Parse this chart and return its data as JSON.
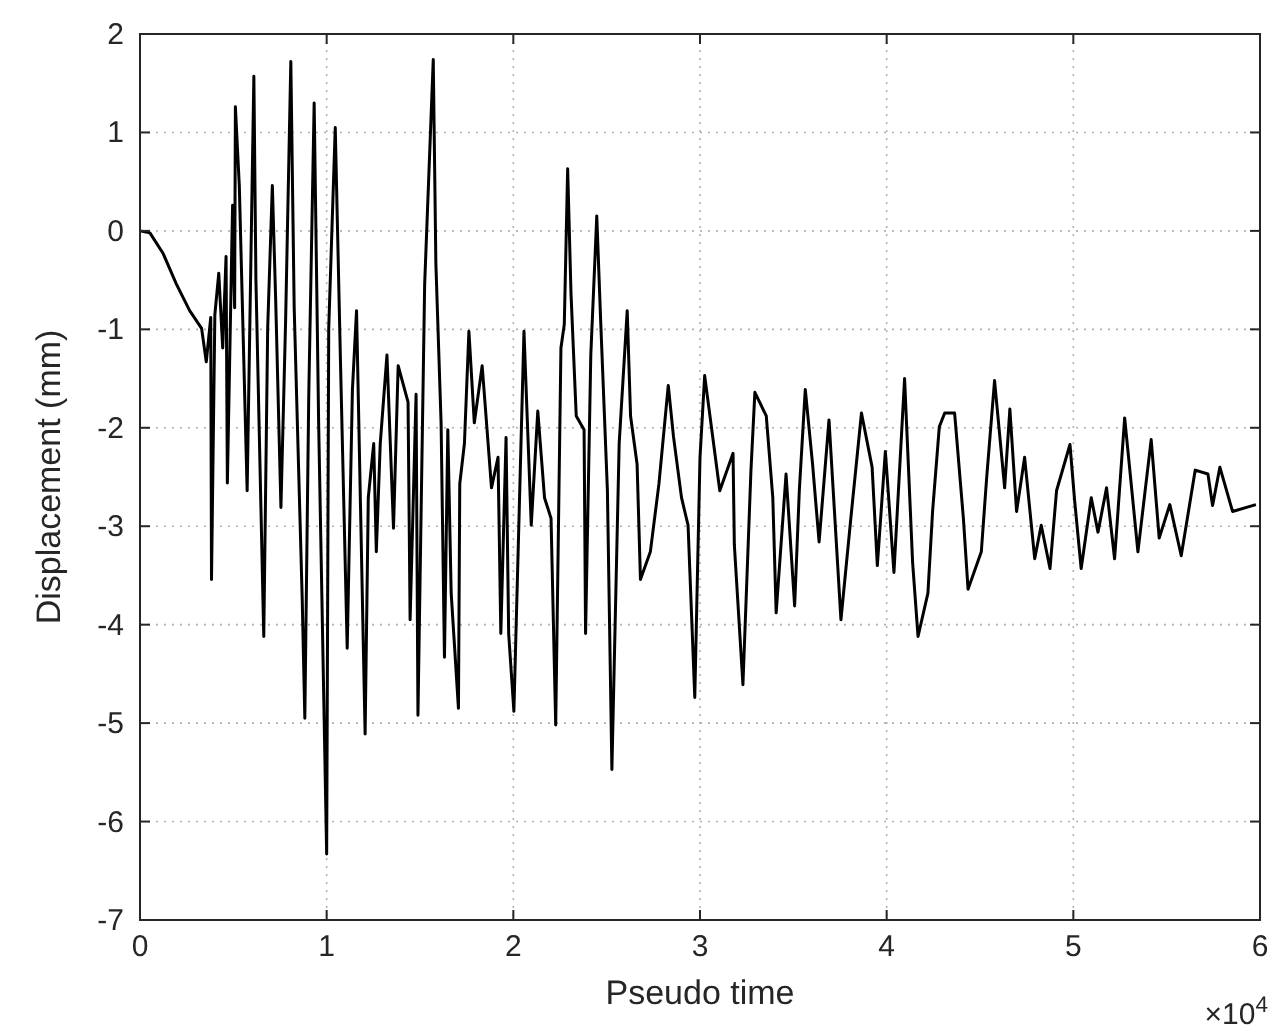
{
  "chart_data": {
    "type": "line",
    "xlabel": "Pseudo time",
    "ylabel": "Displacement (mm)",
    "annotations": [
      "×10$^{4}$"
    ],
    "xlim": [
      0,
      6
    ],
    "ylim": [
      -7,
      2
    ],
    "xticks": [
      0,
      1,
      2,
      3,
      4,
      5,
      6
    ],
    "yticks": [
      -7,
      -6,
      -5,
      -4,
      -3,
      -2,
      -1,
      0,
      1,
      2
    ],
    "grid": true,
    "marker": "none",
    "line_style": "solid",
    "series": [
      {
        "color": "#000000",
        "x": [
          0,
          0.053,
          0.124,
          0.195,
          0.266,
          0.33,
          0.355,
          0.379,
          0.383,
          0.401,
          0.422,
          0.443,
          0.461,
          0.468,
          0.496,
          0.507,
          0.511,
          0.532,
          0.574,
          0.61,
          0.621,
          0.663,
          0.684,
          0.709,
          0.727,
          0.755,
          0.78,
          0.808,
          0.826,
          0.869,
          0.883,
          0.904,
          0.933,
          0.957,
          1.0,
          1.011,
          1.046,
          1.074,
          1.11,
          1.138,
          1.16,
          1.17,
          1.206,
          1.223,
          1.252,
          1.266,
          1.287,
          1.323,
          1.358,
          1.383,
          1.436,
          1.447,
          1.479,
          1.489,
          1.525,
          1.571,
          1.585,
          1.613,
          1.631,
          1.649,
          1.667,
          1.706,
          1.713,
          1.738,
          1.762,
          1.791,
          1.833,
          1.883,
          1.918,
          1.933,
          1.961,
          1.975,
          2.003,
          2.057,
          2.096,
          2.131,
          2.167,
          2.202,
          2.227,
          2.255,
          2.273,
          2.291,
          2.309,
          2.337,
          2.379,
          2.387,
          2.415,
          2.447,
          2.468,
          2.504,
          2.528,
          2.567,
          2.61,
          2.628,
          2.663,
          2.681,
          2.734,
          2.78,
          2.83,
          2.858,
          2.901,
          2.936,
          2.972,
          3.0,
          3.025,
          3.106,
          3.177,
          3.184,
          3.23,
          3.273,
          3.294,
          3.355,
          3.39,
          3.408,
          3.461,
          3.507,
          3.532,
          3.564,
          3.603,
          3.638,
          3.691,
          3.727,
          3.755,
          3.808,
          3.865,
          3.922,
          3.95,
          3.993,
          4.039,
          4.096,
          4.139,
          4.168,
          4.221,
          4.246,
          4.282,
          4.311,
          4.364,
          4.411,
          4.436,
          4.507,
          4.536,
          4.578,
          4.632,
          4.66,
          4.696,
          4.739,
          4.793,
          4.828,
          4.875,
          4.91,
          4.982,
          5.007,
          5.042,
          5.096,
          5.132,
          5.178,
          5.221,
          5.275,
          5.346,
          5.417,
          5.46,
          5.517,
          5.578,
          5.653,
          5.721,
          5.746,
          5.785,
          5.853,
          5.978
        ],
        "values": [
          0,
          -0.02,
          -0.23,
          -0.54,
          -0.81,
          -0.99,
          -1.33,
          -0.88,
          -3.54,
          -0.85,
          -0.43,
          -1.19,
          -0.26,
          -2.56,
          0.26,
          -0.78,
          1.26,
          0.46,
          -2.64,
          1.57,
          -0.5,
          -4.12,
          -0.99,
          0.46,
          -0.71,
          -2.81,
          -0.92,
          1.72,
          -0.78,
          -3.74,
          -4.95,
          -1.68,
          1.3,
          -1.95,
          -6.33,
          -0.99,
          1.05,
          -1.33,
          -4.24,
          -1.61,
          -0.81,
          -1.74,
          -5.11,
          -2.71,
          -2.16,
          -3.26,
          -2.16,
          -1.26,
          -3.02,
          -1.37,
          -1.74,
          -3.95,
          -1.66,
          -4.92,
          -0.54,
          1.74,
          -0.33,
          -1.95,
          -4.33,
          -2.02,
          -3.68,
          -4.85,
          -2.57,
          -2.16,
          -1.02,
          -1.95,
          -1.37,
          -2.61,
          -2.3,
          -4.09,
          -2.1,
          -4.09,
          -4.88,
          -1.02,
          -2.99,
          -1.83,
          -2.71,
          -2.92,
          -5.02,
          -1.19,
          -0.95,
          0.63,
          -0.64,
          -1.88,
          -2.02,
          -4.09,
          -1.26,
          0.15,
          -0.92,
          -2.64,
          -5.47,
          -2.16,
          -0.81,
          -1.88,
          -2.37,
          -3.54,
          -3.26,
          -2.57,
          -1.57,
          -2.09,
          -2.71,
          -2.99,
          -4.74,
          -2.3,
          -1.47,
          -2.64,
          -2.26,
          -3.19,
          -4.61,
          -2.43,
          -1.64,
          -1.88,
          -2.71,
          -3.88,
          -2.47,
          -3.81,
          -2.64,
          -1.61,
          -2.37,
          -3.16,
          -1.92,
          -3.06,
          -3.95,
          -2.92,
          -1.85,
          -2.4,
          -3.4,
          -2.24,
          -3.47,
          -1.5,
          -3.37,
          -4.12,
          -3.68,
          -2.85,
          -1.99,
          -1.85,
          -1.85,
          -2.92,
          -3.64,
          -3.26,
          -2.5,
          -1.52,
          -2.61,
          -1.81,
          -2.85,
          -2.3,
          -3.33,
          -2.99,
          -3.43,
          -2.64,
          -2.17,
          -2.74,
          -3.43,
          -2.71,
          -3.06,
          -2.61,
          -3.33,
          -1.9,
          -3.26,
          -2.12,
          -3.12,
          -2.78,
          -3.3,
          -2.43,
          -2.47,
          -2.79,
          -2.4,
          -2.85,
          -2.78
        ]
      }
    ]
  }
}
